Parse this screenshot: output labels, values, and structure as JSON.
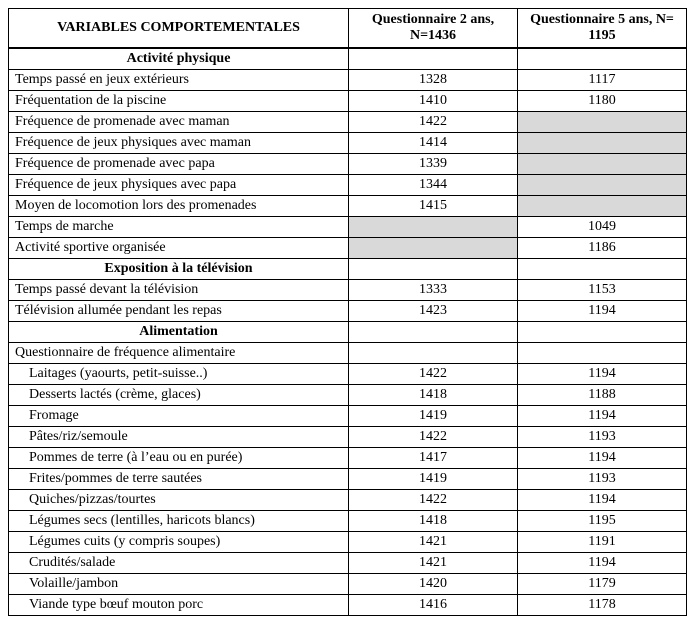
{
  "colors": {
    "background": "#ffffff",
    "text": "#000000",
    "border": "#000000",
    "shaded_cell": "#d9d9d9"
  },
  "typography": {
    "font_family": "Times New Roman",
    "base_fontsize_pt": 11,
    "header_weight": "bold"
  },
  "header": {
    "variables_label": "VARIABLES COMPORTEMENTALES",
    "col_q2": "Questionnaire 2 ans, N=1436",
    "col_q5": "Questionnaire 5 ans, N= 1195"
  },
  "sections": {
    "activite_physique": "Activité physique",
    "exposition_tv": "Exposition à la télévision",
    "alimentation": "Alimentation"
  },
  "rows": {
    "ap_r1": {
      "label": "Temps passé en jeux extérieurs",
      "q2": "1328",
      "q5": "1117"
    },
    "ap_r2": {
      "label": "Fréquentation de la piscine",
      "q2": "1410",
      "q5": "1180"
    },
    "ap_r3": {
      "label": "Fréquence de promenade avec maman",
      "q2": "1422",
      "q5": ""
    },
    "ap_r4": {
      "label": "Fréquence de jeux physiques avec maman",
      "q2": "1414",
      "q5": ""
    },
    "ap_r5": {
      "label": "Fréquence de promenade avec papa",
      "q2": "1339",
      "q5": ""
    },
    "ap_r6": {
      "label": "Fréquence de jeux physiques avec papa",
      "q2": "1344",
      "q5": ""
    },
    "ap_r7": {
      "label": "Moyen de locomotion lors des promenades",
      "q2": "1415",
      "q5": ""
    },
    "ap_r8": {
      "label": "Temps de marche",
      "q2": "",
      "q5": "1049"
    },
    "ap_r9": {
      "label": "Activité sportive organisée",
      "q2": "",
      "q5": "1186"
    },
    "tv_r1": {
      "label": "Temps passé devant la télévision",
      "q2": "1333",
      "q5": "1153"
    },
    "tv_r2": {
      "label": "Télévision allumée pendant les repas",
      "q2": "1423",
      "q5": "1194"
    },
    "al_r0": {
      "label": "Questionnaire de fréquence alimentaire",
      "q2": "",
      "q5": ""
    },
    "al_r1": {
      "label": "Laitages (yaourts, petit-suisse..)",
      "q2": "1422",
      "q5": "1194"
    },
    "al_r2": {
      "label": "Desserts lactés (crème, glaces)",
      "q2": "1418",
      "q5": "1188"
    },
    "al_r3": {
      "label": "Fromage",
      "q2": "1419",
      "q5": "1194"
    },
    "al_r4": {
      "label": "Pâtes/riz/semoule",
      "q2": "1422",
      "q5": "1193"
    },
    "al_r5": {
      "label": "Pommes de terre (à l’eau ou en purée)",
      "q2": "1417",
      "q5": "1194"
    },
    "al_r6": {
      "label": "Frites/pommes de terre sautées",
      "q2": "1419",
      "q5": "1193"
    },
    "al_r7": {
      "label": "Quiches/pizzas/tourtes",
      "q2": "1422",
      "q5": "1194"
    },
    "al_r8": {
      "label": "Légumes secs (lentilles, haricots blancs)",
      "q2": "1418",
      "q5": "1195"
    },
    "al_r9": {
      "label": "Légumes cuits (y compris soupes)",
      "q2": "1421",
      "q5": "1191"
    },
    "al_r10": {
      "label": "Crudités/salade",
      "q2": "1421",
      "q5": "1194"
    },
    "al_r11": {
      "label": "Volaille/jambon",
      "q2": "1420",
      "q5": "1179"
    },
    "al_r12": {
      "label": "Viande type bœuf mouton porc",
      "q2": "1416",
      "q5": "1178"
    }
  }
}
